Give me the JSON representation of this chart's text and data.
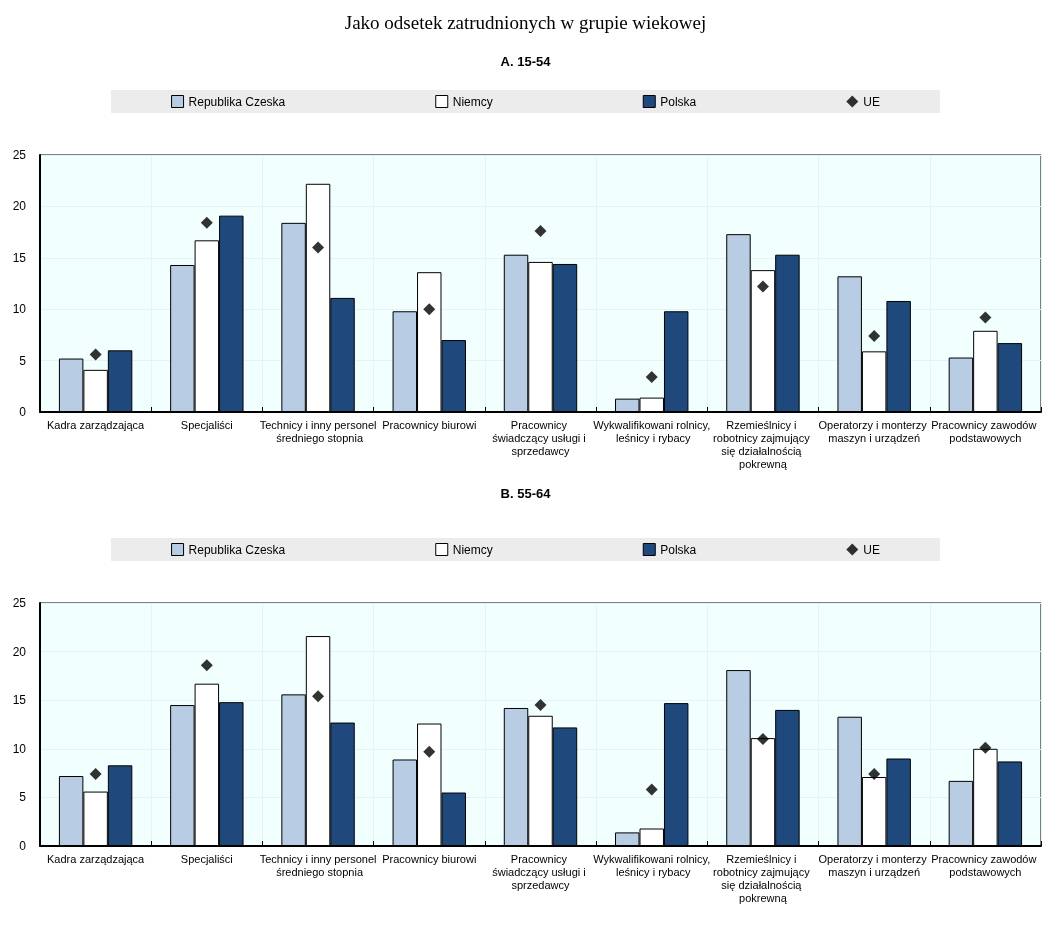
{
  "chart_data": [
    {
      "type": "bar",
      "title": "Jako odsetek zatrudnionych w grupie wiekowej",
      "subtitle": "A. 15-54",
      "categories": [
        "Kadra zarządzająca",
        "Specjaliści",
        "Technicy i inny personel średniego stopnia",
        "Pracownicy biurowi",
        "Pracownicy świadczący usługi i sprzedawcy",
        "Wykwalifikowani rolnicy, leśnicy i rybacy",
        "Rzemieślnicy i robotnicy zajmujący się działalnością pokrewną",
        "Operatorzy i monterzy maszyn i urządzeń",
        "Pracownicy zawodów podstawowych"
      ],
      "series": [
        {
          "name": "Republika Czeska",
          "color": "#b8cce4",
          "values": [
            5.2,
            14.3,
            18.4,
            9.8,
            15.3,
            1.3,
            17.3,
            13.2,
            5.3
          ]
        },
        {
          "name": "Niemcy",
          "color": "#ffffff",
          "values": [
            4.1,
            16.7,
            22.2,
            13.6,
            14.6,
            1.4,
            13.8,
            5.9,
            7.9
          ]
        },
        {
          "name": "Polska",
          "color": "#1f497d",
          "values": [
            6.0,
            19.1,
            11.1,
            7.0,
            14.4,
            9.8,
            15.3,
            10.8,
            6.7
          ]
        },
        {
          "name": "UE",
          "type": "scatter",
          "marker": "diamond",
          "color": "#000000",
          "values": [
            5.6,
            18.4,
            16.0,
            10.0,
            17.6,
            3.4,
            12.2,
            7.4,
            9.2
          ]
        }
      ],
      "ylim": [
        0,
        25
      ],
      "yticks": [
        0,
        5,
        10,
        15,
        20,
        25
      ],
      "grid": true,
      "legend": "top"
    },
    {
      "type": "bar",
      "title": "B. 55-64",
      "categories": [
        "Kadra zarządzająca",
        "Specjaliści",
        "Technicy i inny personel średniego stopnia",
        "Pracownicy biurowi",
        "Pracownicy świadczący usługi i sprzedawcy",
        "Wykwalifikowani rolnicy, leśnicy i rybacy",
        "Rzemieślnicy i robotnicy zajmujący się działalnością pokrewną",
        "Operatorzy i monterzy maszyn i urządzeń",
        "Pracownicy zawodów podstawowych"
      ],
      "series": [
        {
          "name": "Republika Czeska",
          "color": "#b8cce4",
          "values": [
            7.2,
            14.5,
            15.6,
            8.9,
            14.2,
            1.4,
            18.1,
            13.3,
            6.7
          ]
        },
        {
          "name": "Niemcy",
          "color": "#ffffff",
          "values": [
            5.6,
            16.7,
            21.6,
            12.6,
            13.4,
            1.8,
            11.1,
            7.1,
            10.0
          ]
        },
        {
          "name": "Polska",
          "color": "#1f497d",
          "values": [
            8.3,
            14.8,
            12.7,
            5.5,
            12.2,
            14.7,
            14.0,
            9.0,
            8.7
          ]
        },
        {
          "name": "UE",
          "type": "scatter",
          "marker": "diamond",
          "color": "#000000",
          "values": [
            7.4,
            18.6,
            15.4,
            9.7,
            14.5,
            5.8,
            11.0,
            7.4,
            10.1
          ]
        }
      ],
      "ylim": [
        0,
        25
      ],
      "yticks": [
        0,
        5,
        10,
        15,
        20,
        25
      ],
      "grid": true,
      "legend": "top"
    }
  ]
}
